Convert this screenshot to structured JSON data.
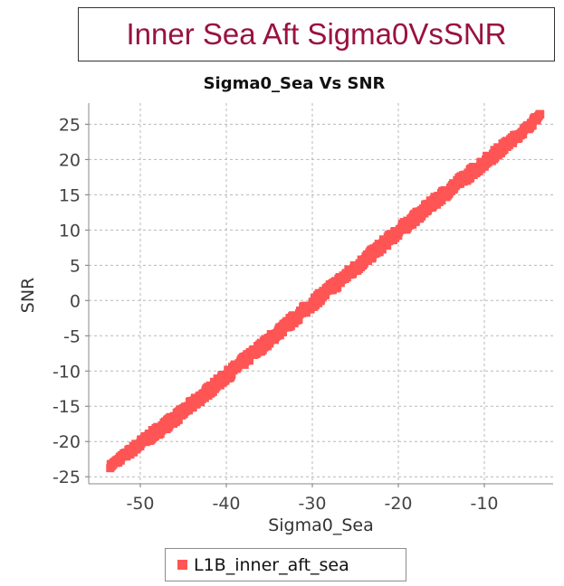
{
  "header": {
    "title": "Inner Sea Aft Sigma0VsSNR"
  },
  "chart_data": {
    "type": "scatter",
    "title": "Sigma0_Sea Vs SNR",
    "xlabel": "Sigma0_Sea",
    "ylabel": "SNR",
    "xlim": [
      -56,
      -2
    ],
    "ylim": [
      -26,
      28
    ],
    "x_ticks": [
      -50,
      -40,
      -30,
      -20,
      -10
    ],
    "y_ticks": [
      -25,
      -20,
      -15,
      -10,
      -5,
      0,
      5,
      10,
      15,
      20,
      25
    ],
    "grid": true,
    "legend_position": "bottom",
    "series": [
      {
        "name": "L1B_inner_aft_sea",
        "color": "#ff5555",
        "trend": {
          "x": [
            -53.5,
            -45,
            -40,
            -35,
            -30,
            -25,
            -20,
            -15,
            -10,
            -5,
            -3.5
          ],
          "y": [
            -23.5,
            -15.8,
            -10.7,
            -5.6,
            -0.4,
            4.6,
            9.8,
            14.8,
            19.6,
            24.5,
            26.4
          ]
        },
        "spread": 0.7
      }
    ]
  }
}
